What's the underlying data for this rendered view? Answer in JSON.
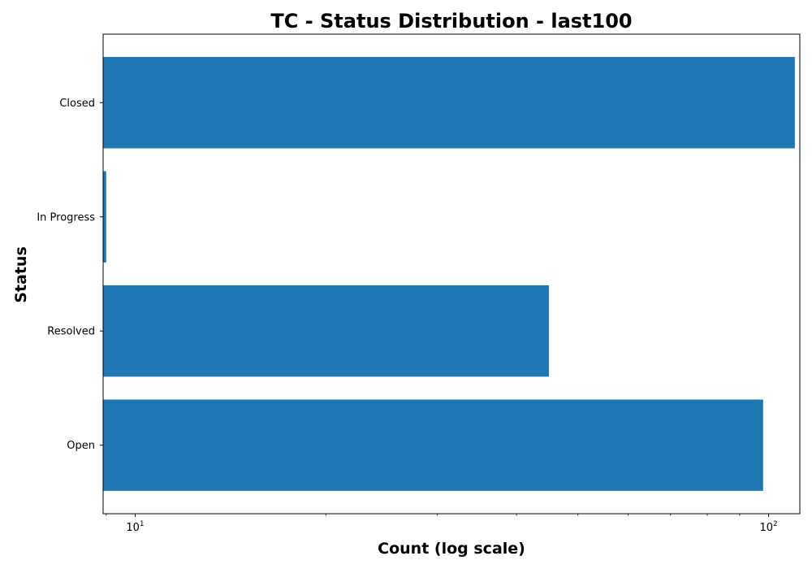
{
  "chart_data": {
    "type": "bar",
    "orientation": "horizontal",
    "title": "TC - Status Distribution - last100",
    "xlabel": "Count (log scale)",
    "ylabel": "Status",
    "xscale": "log",
    "xlim": [
      8.9,
      112
    ],
    "categories": [
      "Closed",
      "In Progress",
      "Resolved",
      "Open"
    ],
    "values": [
      110,
      9,
      45,
      98
    ],
    "x_major_ticks": [
      {
        "value": 10,
        "base": "10",
        "exp": "1"
      },
      {
        "value": 100,
        "base": "10",
        "exp": "2"
      }
    ],
    "grid": false,
    "legend": "none",
    "colors": {
      "bar": "#1f77b4",
      "axes": "#000000",
      "background": "#ffffff"
    }
  }
}
